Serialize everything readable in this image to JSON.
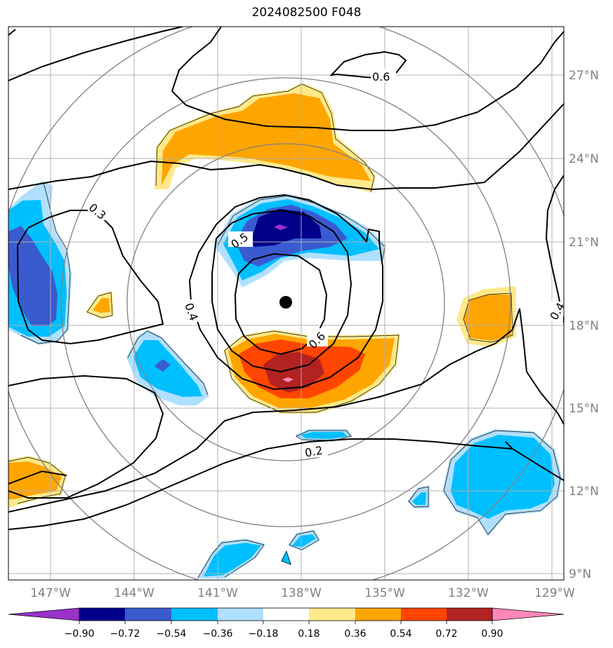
{
  "title": "2024082500 F048",
  "longitude_labels": [
    "147°W",
    "144°W",
    "141°W",
    "138°W",
    "135°W",
    "132°W",
    "129°W"
  ],
  "latitude_labels": [
    "27°N",
    "24°N",
    "21°N",
    "18°N",
    "15°N",
    "12°N",
    "9°N"
  ],
  "contour_labels": [
    "0.6",
    "0.3",
    "0.5",
    "0.4",
    "0.6",
    "0.4",
    "0.2"
  ],
  "colorbar": {
    "ticks": [
      "−0.90",
      "−0.72",
      "−0.54",
      "−0.36",
      "−0.18",
      "0.18",
      "0.36",
      "0.54",
      "0.72",
      "0.90"
    ],
    "colors": [
      "#9932cc",
      "#00008b",
      "#3a5bd0",
      "#00bfff",
      "#b0e0ff",
      "#ffffff",
      "#ffe98a",
      "#ffa500",
      "#ff4500",
      "#b22222",
      "#ff88b8"
    ]
  },
  "center_marker": {
    "lon": -138.5,
    "lat": 18.7
  },
  "colors": {
    "grid": "#b0b0b0",
    "range_rings": "#808080",
    "contour": "#000000",
    "tick_text": "#808080"
  }
}
